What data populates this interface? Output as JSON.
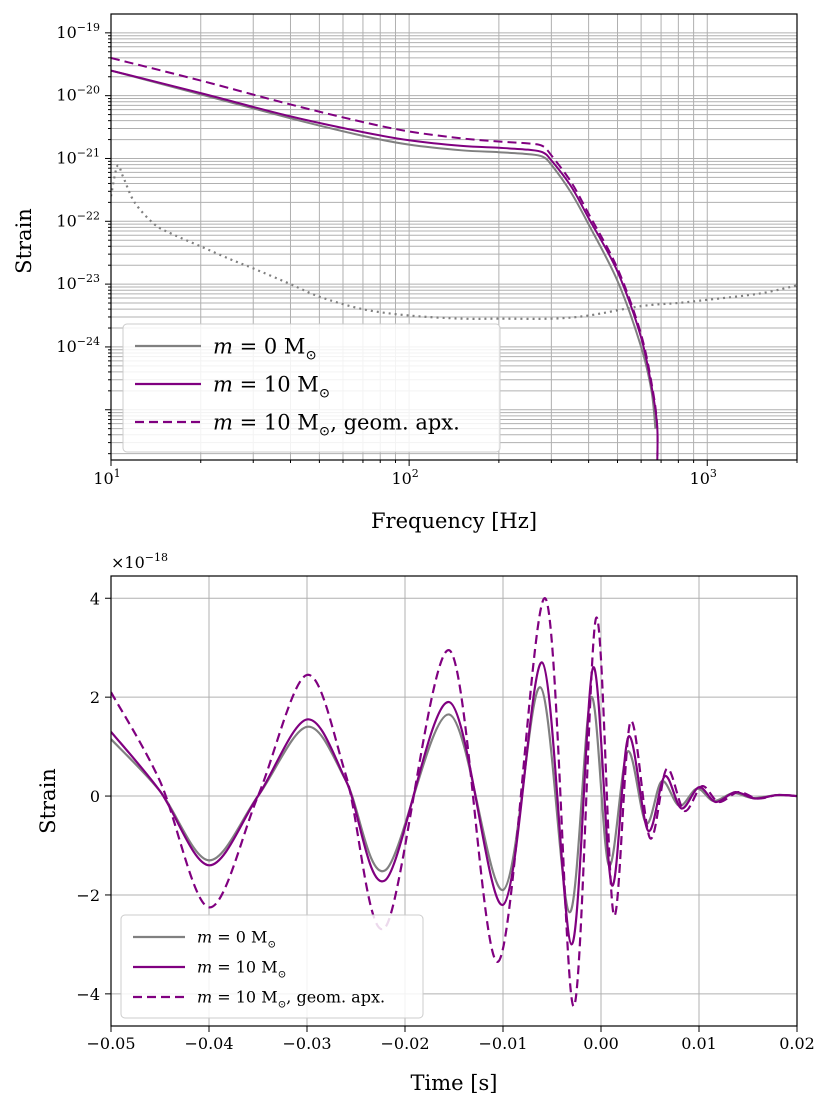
{
  "chart_data": [
    {
      "type": "line",
      "scale": "log-log",
      "xlabel": "Frequency [Hz]",
      "ylabel": "Strain",
      "xlim": [
        10,
        2000
      ],
      "ylim_log10": [
        -25.8,
        -18.7
      ],
      "x_ticks": [
        {
          "value": 10,
          "base": "10",
          "exp": "1"
        },
        {
          "value": 100,
          "base": "10",
          "exp": "2"
        },
        {
          "value": 1000,
          "base": "10",
          "exp": "3"
        }
      ],
      "y_ticks": [
        {
          "value": 1e-19,
          "base": "10",
          "exp": "−19"
        },
        {
          "value": 1e-20,
          "base": "10",
          "exp": "−20"
        },
        {
          "value": 1e-21,
          "base": "10",
          "exp": "−21"
        },
        {
          "value": 1e-22,
          "base": "10",
          "exp": "−22"
        },
        {
          "value": 1e-23,
          "base": "10",
          "exp": "−23"
        },
        {
          "value": 1e-24,
          "base": "10",
          "exp": "−24"
        }
      ],
      "grid": true,
      "legend_position": "bottom-left",
      "series": [
        {
          "name": "m = 0 M⊙",
          "color": "#808080",
          "style": "solid",
          "x": [
            10,
            20,
            40,
            70,
            100,
            150,
            200,
            250,
            280,
            300,
            350,
            400,
            500,
            600,
            650,
            670
          ],
          "log10_y": [
            -19.6,
            -19.98,
            -20.36,
            -20.64,
            -20.78,
            -20.87,
            -20.9,
            -20.93,
            -20.97,
            -21.1,
            -21.55,
            -22.05,
            -22.95,
            -24.0,
            -24.7,
            -25.3
          ]
        },
        {
          "name": "m = 10 M⊙",
          "color": "#800080",
          "style": "solid",
          "x": [
            10,
            20,
            40,
            70,
            100,
            150,
            200,
            250,
            280,
            300,
            350,
            400,
            500,
            600,
            660,
            680,
            680
          ],
          "log10_y": [
            -19.6,
            -19.96,
            -20.33,
            -20.58,
            -20.71,
            -20.8,
            -20.83,
            -20.86,
            -20.9,
            -21.03,
            -21.45,
            -21.95,
            -22.8,
            -23.85,
            -24.8,
            -25.3,
            -25.8
          ]
        },
        {
          "name": "m = 10 M⊙, geom. apx.",
          "color": "#800080",
          "style": "dashed",
          "x": [
            10,
            20,
            40,
            70,
            100,
            150,
            200,
            250,
            280,
            300,
            350,
            400,
            500,
            600,
            660,
            680,
            680
          ],
          "log10_y": [
            -19.4,
            -19.76,
            -20.14,
            -20.42,
            -20.57,
            -20.68,
            -20.73,
            -20.76,
            -20.8,
            -20.95,
            -21.38,
            -21.88,
            -22.75,
            -23.8,
            -24.75,
            -25.3,
            -25.8
          ]
        },
        {
          "name": "noise",
          "color": "#808080",
          "style": "dotted",
          "legend": false,
          "x": [
            10,
            10.5,
            11,
            12,
            14,
            16,
            20,
            25,
            30,
            40,
            50,
            70,
            100,
            150,
            200,
            300,
            400,
            600,
            800,
            1000,
            1500,
            2000
          ],
          "log10_y": [
            -21.6,
            -21.12,
            -21.3,
            -21.7,
            -22.05,
            -22.2,
            -22.4,
            -22.6,
            -22.75,
            -23.0,
            -23.2,
            -23.4,
            -23.5,
            -23.55,
            -23.55,
            -23.55,
            -23.5,
            -23.35,
            -23.3,
            -23.25,
            -23.15,
            -23.02
          ]
        }
      ]
    },
    {
      "type": "line",
      "xlabel": "Time [s]",
      "ylabel": "Strain",
      "multiplier": {
        "base": "×10",
        "exp": "−18"
      },
      "xlim": [
        -0.05,
        0.02
      ],
      "ylim": [
        -4.65,
        4.45
      ],
      "x_ticks": [
        -0.05,
        -0.04,
        -0.03,
        -0.02,
        -0.01,
        0.0,
        0.01,
        0.02
      ],
      "x_tick_labels": [
        "−0.05",
        "−0.04",
        "−0.03",
        "−0.02",
        "−0.01",
        "0.00",
        "0.01",
        "0.02"
      ],
      "y_ticks": [
        -4,
        -2,
        0,
        2,
        4
      ],
      "y_tick_labels": [
        "−4",
        "−2",
        "0",
        "2",
        "4"
      ],
      "grid": true,
      "legend_position": "bottom-left",
      "series": [
        {
          "name": "m = 0 M⊙",
          "color": "#808080",
          "style": "solid",
          "x": [
            -0.05,
            -0.045,
            -0.04,
            -0.035,
            -0.03,
            -0.026,
            -0.022,
            -0.0155,
            -0.01,
            -0.0062,
            -0.0032,
            -0.001,
            0.0008,
            0.0027,
            0.0046,
            0.0062,
            0.008,
            0.0098,
            0.0115,
            0.0135,
            0.0155,
            0.018,
            0.02
          ],
          "y": [
            1.15,
            0.1,
            -1.3,
            0.0,
            1.4,
            0.3,
            -1.5,
            1.65,
            -1.9,
            2.2,
            -2.35,
            2.0,
            -1.4,
            0.9,
            -0.55,
            0.3,
            -0.2,
            0.15,
            -0.1,
            0.06,
            -0.04,
            0.02,
            0.0
          ]
        },
        {
          "name": "m = 10 M⊙",
          "color": "#800080",
          "style": "solid",
          "x": [
            -0.05,
            -0.045,
            -0.04,
            -0.035,
            -0.03,
            -0.026,
            -0.022,
            -0.0155,
            -0.01,
            -0.006,
            -0.003,
            -0.0008,
            0.0011,
            0.0028,
            0.0048,
            0.0065,
            0.0082,
            0.01,
            0.0117,
            0.0137,
            0.0157,
            0.018,
            0.02
          ],
          "y": [
            1.3,
            0.1,
            -1.4,
            0.0,
            1.55,
            0.3,
            -1.7,
            1.9,
            -2.2,
            2.7,
            -3.0,
            2.6,
            -1.8,
            1.2,
            -0.7,
            0.4,
            -0.25,
            0.18,
            -0.12,
            0.08,
            -0.05,
            0.02,
            0.0
          ]
        },
        {
          "name": "m = 10 M⊙, geom. apx.",
          "color": "#800080",
          "style": "dashed",
          "x": [
            -0.05,
            -0.045,
            -0.04,
            -0.035,
            -0.03,
            -0.026,
            -0.022,
            -0.0155,
            -0.0105,
            -0.0057,
            -0.0028,
            -0.0005,
            0.0013,
            0.003,
            0.005,
            0.0067,
            0.0085,
            0.0103,
            0.012,
            0.014,
            0.016,
            0.018,
            0.02
          ],
          "y": [
            2.1,
            0.3,
            -2.25,
            0.0,
            2.45,
            0.4,
            -2.65,
            2.95,
            -3.35,
            4.0,
            -4.25,
            3.6,
            -2.4,
            1.5,
            -0.85,
            0.55,
            -0.3,
            0.2,
            -0.12,
            0.08,
            -0.05,
            0.02,
            0.0
          ]
        }
      ]
    }
  ],
  "legend": {
    "items": [
      {
        "label_italic": "m",
        "label_rest": " = 0 M",
        "sub": "⊙",
        "suffix": "",
        "color": "#808080",
        "dash": ""
      },
      {
        "label_italic": "m",
        "label_rest": " = 10 M",
        "sub": "⊙",
        "suffix": "",
        "color": "#800080",
        "dash": ""
      },
      {
        "label_italic": "m",
        "label_rest": " = 10 M",
        "sub": "⊙",
        "suffix": ", geom. apx.",
        "color": "#800080",
        "dash": "9,5"
      }
    ]
  }
}
